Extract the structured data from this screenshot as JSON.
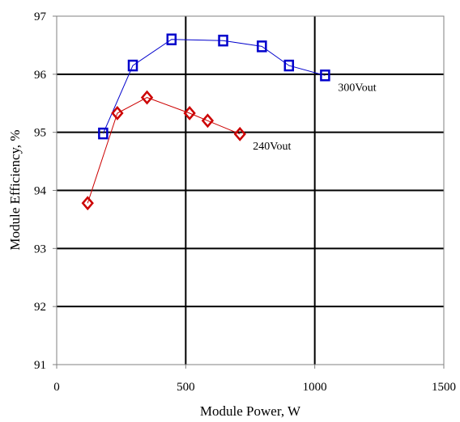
{
  "chart_data": {
    "type": "line",
    "title": "",
    "xlabel": "Module Power, W",
    "ylabel": "Module Efficiency, %",
    "xlim": [
      0,
      1500
    ],
    "ylim": [
      91,
      97
    ],
    "xticks": [
      "0",
      "500",
      "1000",
      "1500"
    ],
    "yticks": [
      "91",
      "92",
      "93",
      "94",
      "95",
      "96",
      "97"
    ],
    "grid": true,
    "series": [
      {
        "name": "300Vout",
        "color": "#0000cc",
        "marker": "square",
        "x": [
          180,
          295,
          445,
          645,
          795,
          900,
          1040
        ],
        "y": [
          94.98,
          96.15,
          96.6,
          96.58,
          96.48,
          96.15,
          95.98
        ]
      },
      {
        "name": "240Vout",
        "color": "#cc0000",
        "marker": "diamond",
        "x": [
          120,
          235,
          350,
          515,
          585,
          710
        ],
        "y": [
          93.78,
          95.33,
          95.6,
          95.33,
          95.2,
          94.97
        ]
      }
    ]
  }
}
